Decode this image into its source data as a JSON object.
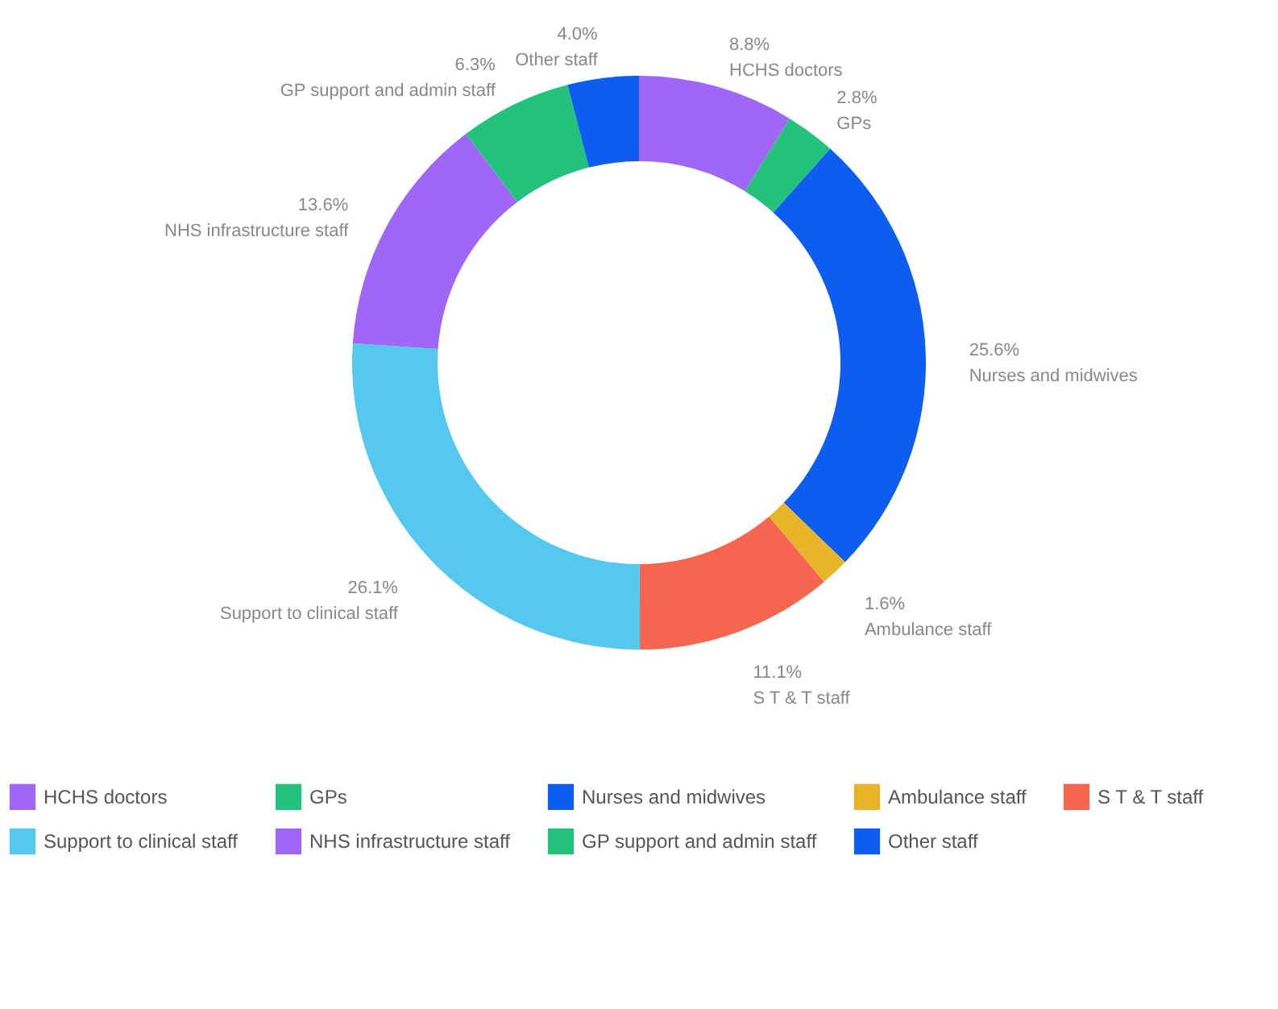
{
  "chart_data": {
    "type": "donut",
    "categories": [
      "HCHS doctors",
      "GPs",
      "Nurses and midwives",
      "Ambulance staff",
      "S T & T staff",
      "Support to clinical staff",
      "NHS infrastructure staff",
      "GP support and admin staff",
      "Other staff"
    ],
    "values": [
      8.8,
      2.8,
      25.6,
      1.6,
      11.1,
      26.1,
      13.6,
      6.3,
      4.0
    ],
    "value_labels": [
      "8.8%",
      "2.8%",
      "25.6%",
      "1.6%",
      "11.1%",
      "26.1%",
      "13.6%",
      "6.3%",
      "4.0%"
    ],
    "colors": [
      "#a066f5",
      "#22c27a",
      "#0d5ef0",
      "#e8b52a",
      "#f5654f",
      "#55c8ef",
      "#a066f5",
      "#22c27a",
      "#0d5ef0"
    ],
    "legend": "bottom"
  }
}
